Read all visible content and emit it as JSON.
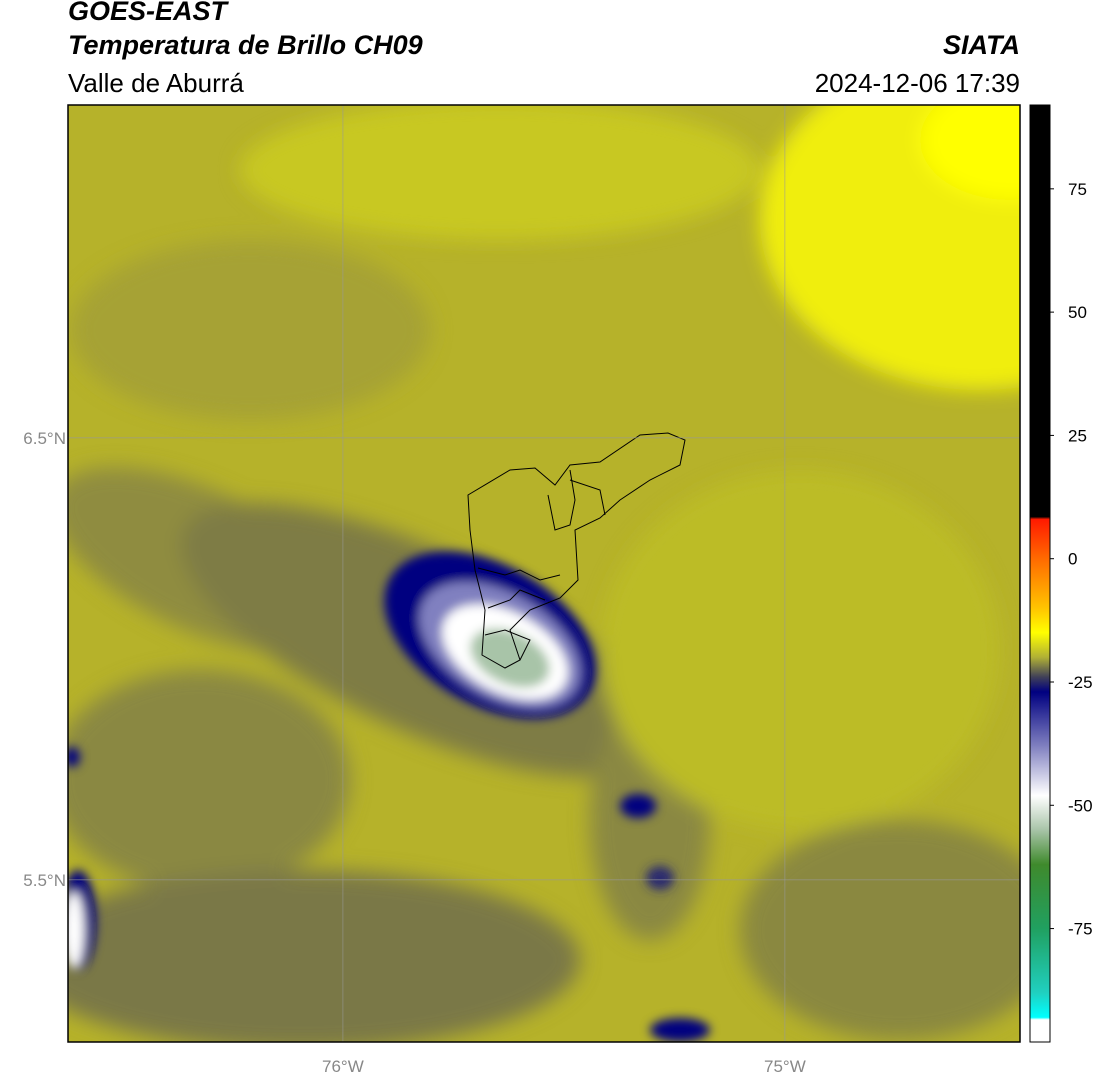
{
  "header": {
    "title": "GOES-EAST",
    "subtitle": "Temperatura de Brillo CH09",
    "region": "Valle de Aburrá",
    "source": "SIATA",
    "datetime": "2024-12-06 17:39"
  },
  "map": {
    "xlim": [
      -76.622,
      -74.468
    ],
    "ylim": [
      5.133,
      7.253
    ],
    "xticks": [
      {
        "value": -76,
        "label": "76°W"
      },
      {
        "value": -75,
        "label": "75°W"
      }
    ],
    "yticks": [
      {
        "value": 6.5,
        "label": "6.5°N"
      },
      {
        "value": 5.5,
        "label": "5.5°N"
      }
    ],
    "grid": true
  },
  "colorbar": {
    "range": [
      -98,
      92
    ],
    "ticks": [
      75,
      50,
      25,
      0,
      -25,
      -50,
      -75
    ],
    "stops": [
      {
        "value": 92,
        "color": "#000000"
      },
      {
        "value": 8.5,
        "color": "#000000"
      },
      {
        "value": 8,
        "color": "#ff1a00"
      },
      {
        "value": 0,
        "color": "#ff6a00"
      },
      {
        "value": -10,
        "color": "#ffc400"
      },
      {
        "value": -15,
        "color": "#ffff00"
      },
      {
        "value": -20,
        "color": "#b0b035"
      },
      {
        "value": -24,
        "color": "#404058"
      },
      {
        "value": -27,
        "color": "#000080"
      },
      {
        "value": -38,
        "color": "#8080c0"
      },
      {
        "value": -48,
        "color": "#ffffff"
      },
      {
        "value": -55,
        "color": "#a8c4a8"
      },
      {
        "value": -62,
        "color": "#3f8a2c"
      },
      {
        "value": -75,
        "color": "#20a060"
      },
      {
        "value": -88,
        "color": "#20d0c0"
      },
      {
        "value": -93,
        "color": "#00ffff"
      },
      {
        "value": -93.5,
        "color": "#ffffff"
      },
      {
        "value": -98,
        "color": "#ffffff"
      }
    ]
  }
}
